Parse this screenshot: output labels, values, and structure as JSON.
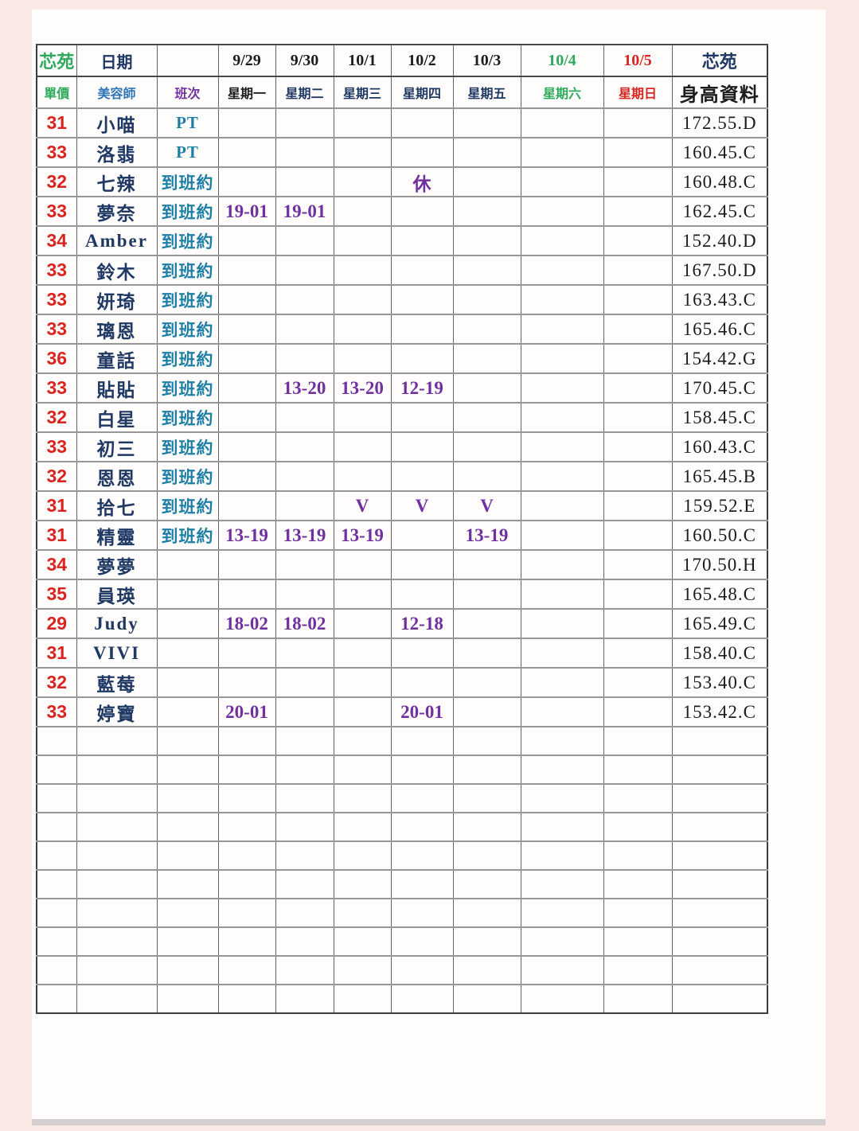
{
  "page": {
    "background_color": "#fbe9e6",
    "paper_color": "#fffdfb",
    "bottom_strip_color": "#d2cfce"
  },
  "colors": {
    "red": "#da2420",
    "green": "#2fa95c",
    "navy": "#1f3864",
    "steel_blue": "#2e75b6",
    "teal": "#1e7fa6",
    "purple": "#7030a0",
    "black": "#1c1c1c"
  },
  "table": {
    "header_row1": [
      {
        "text": "芯苑",
        "color": "green"
      },
      {
        "text": "日期",
        "color": "navy"
      },
      {
        "text": "",
        "color": "black"
      },
      {
        "text": "9/29",
        "color": "black"
      },
      {
        "text": "9/30",
        "color": "black"
      },
      {
        "text": "10/1",
        "color": "black"
      },
      {
        "text": "10/2",
        "color": "black"
      },
      {
        "text": "10/3",
        "color": "black"
      },
      {
        "text": "10/4",
        "color": "green"
      },
      {
        "text": "10/5",
        "color": "red"
      },
      {
        "text": "芯苑",
        "color": "navy"
      }
    ],
    "header_row2": [
      {
        "text": "單價",
        "color": "green"
      },
      {
        "text": "美容師",
        "color": "blue"
      },
      {
        "text": "班次",
        "color": "purple"
      },
      {
        "text": "星期一",
        "color": "black"
      },
      {
        "text": "星期二",
        "color": "navy"
      },
      {
        "text": "星期三",
        "color": "navy"
      },
      {
        "text": "星期四",
        "color": "navy"
      },
      {
        "text": "星期五",
        "color": "navy"
      },
      {
        "text": "星期六",
        "color": "green"
      },
      {
        "text": "星期日",
        "color": "red"
      },
      {
        "text": "身高資料",
        "color": "black"
      }
    ],
    "rows": [
      {
        "price": "31",
        "name": "小喵",
        "shift": "PT",
        "days": [
          "",
          "",
          "",
          "",
          "",
          "",
          ""
        ],
        "height": "172.55.D"
      },
      {
        "price": "33",
        "name": "洛翡",
        "shift": "PT",
        "days": [
          "",
          "",
          "",
          "",
          "",
          "",
          ""
        ],
        "height": "160.45.C"
      },
      {
        "price": "32",
        "name": "七辣",
        "shift": "到班約",
        "days": [
          "",
          "",
          "",
          "休",
          "",
          "",
          ""
        ],
        "height": "160.48.C"
      },
      {
        "price": "33",
        "name": "夢奈",
        "shift": "到班約",
        "days": [
          "19-01",
          "19-01",
          "",
          "",
          "",
          "",
          ""
        ],
        "height": "162.45.C"
      },
      {
        "price": "34",
        "name": "Amber",
        "shift": "到班約",
        "days": [
          "",
          "",
          "",
          "",
          "",
          "",
          ""
        ],
        "height": "152.40.D"
      },
      {
        "price": "33",
        "name": "鈴木",
        "shift": "到班約",
        "days": [
          "",
          "",
          "",
          "",
          "",
          "",
          ""
        ],
        "height": "167.50.D"
      },
      {
        "price": "33",
        "name": "妍琦",
        "shift": "到班約",
        "days": [
          "",
          "",
          "",
          "",
          "",
          "",
          ""
        ],
        "height": "163.43.C"
      },
      {
        "price": "33",
        "name": "璃恩",
        "shift": "到班約",
        "days": [
          "",
          "",
          "",
          "",
          "",
          "",
          ""
        ],
        "height": "165.46.C"
      },
      {
        "price": "36",
        "name": "童話",
        "shift": "到班約",
        "days": [
          "",
          "",
          "",
          "",
          "",
          "",
          ""
        ],
        "height": "154.42.G"
      },
      {
        "price": "33",
        "name": "貼貼",
        "shift": "到班約",
        "days": [
          "",
          "13-20",
          "13-20",
          "12-19",
          "",
          "",
          ""
        ],
        "height": "170.45.C"
      },
      {
        "price": "32",
        "name": "白星",
        "shift": "到班約",
        "days": [
          "",
          "",
          "",
          "",
          "",
          "",
          ""
        ],
        "height": "158.45.C"
      },
      {
        "price": "33",
        "name": "初三",
        "shift": "到班約",
        "days": [
          "",
          "",
          "",
          "",
          "",
          "",
          ""
        ],
        "height": "160.43.C"
      },
      {
        "price": "32",
        "name": "恩恩",
        "shift": "到班約",
        "days": [
          "",
          "",
          "",
          "",
          "",
          "",
          ""
        ],
        "height": "165.45.B"
      },
      {
        "price": "31",
        "name": "拾七",
        "shift": "到班約",
        "days": [
          "",
          "",
          "V",
          "V",
          "V",
          "",
          ""
        ],
        "height": "159.52.E"
      },
      {
        "price": "31",
        "name": "精靈",
        "shift": "到班約",
        "days": [
          "13-19",
          "13-19",
          "13-19",
          "",
          "13-19",
          "",
          ""
        ],
        "height": "160.50.C"
      },
      {
        "price": "34",
        "name": "夢夢",
        "shift": "",
        "days": [
          "",
          "",
          "",
          "",
          "",
          "",
          ""
        ],
        "height": "170.50.H"
      },
      {
        "price": "35",
        "name": "員瑛",
        "shift": "",
        "days": [
          "",
          "",
          "",
          "",
          "",
          "",
          ""
        ],
        "height": "165.48.C"
      },
      {
        "price": "29",
        "name": "Judy",
        "shift": "",
        "days": [
          "18-02",
          "18-02",
          "",
          "12-18",
          "",
          "",
          ""
        ],
        "height": "165.49.C"
      },
      {
        "price": "31",
        "name": "VIVI",
        "shift": "",
        "days": [
          "",
          "",
          "",
          "",
          "",
          "",
          ""
        ],
        "height": "158.40.C"
      },
      {
        "price": "32",
        "name": "藍莓",
        "shift": "",
        "days": [
          "",
          "",
          "",
          "",
          "",
          "",
          ""
        ],
        "height": "153.40.C"
      },
      {
        "price": "33",
        "name": "婷寶",
        "shift": "",
        "days": [
          "20-01",
          "",
          "",
          "20-01",
          "",
          "",
          ""
        ],
        "height": "153.42.C"
      }
    ],
    "empty_row_count": 10
  }
}
